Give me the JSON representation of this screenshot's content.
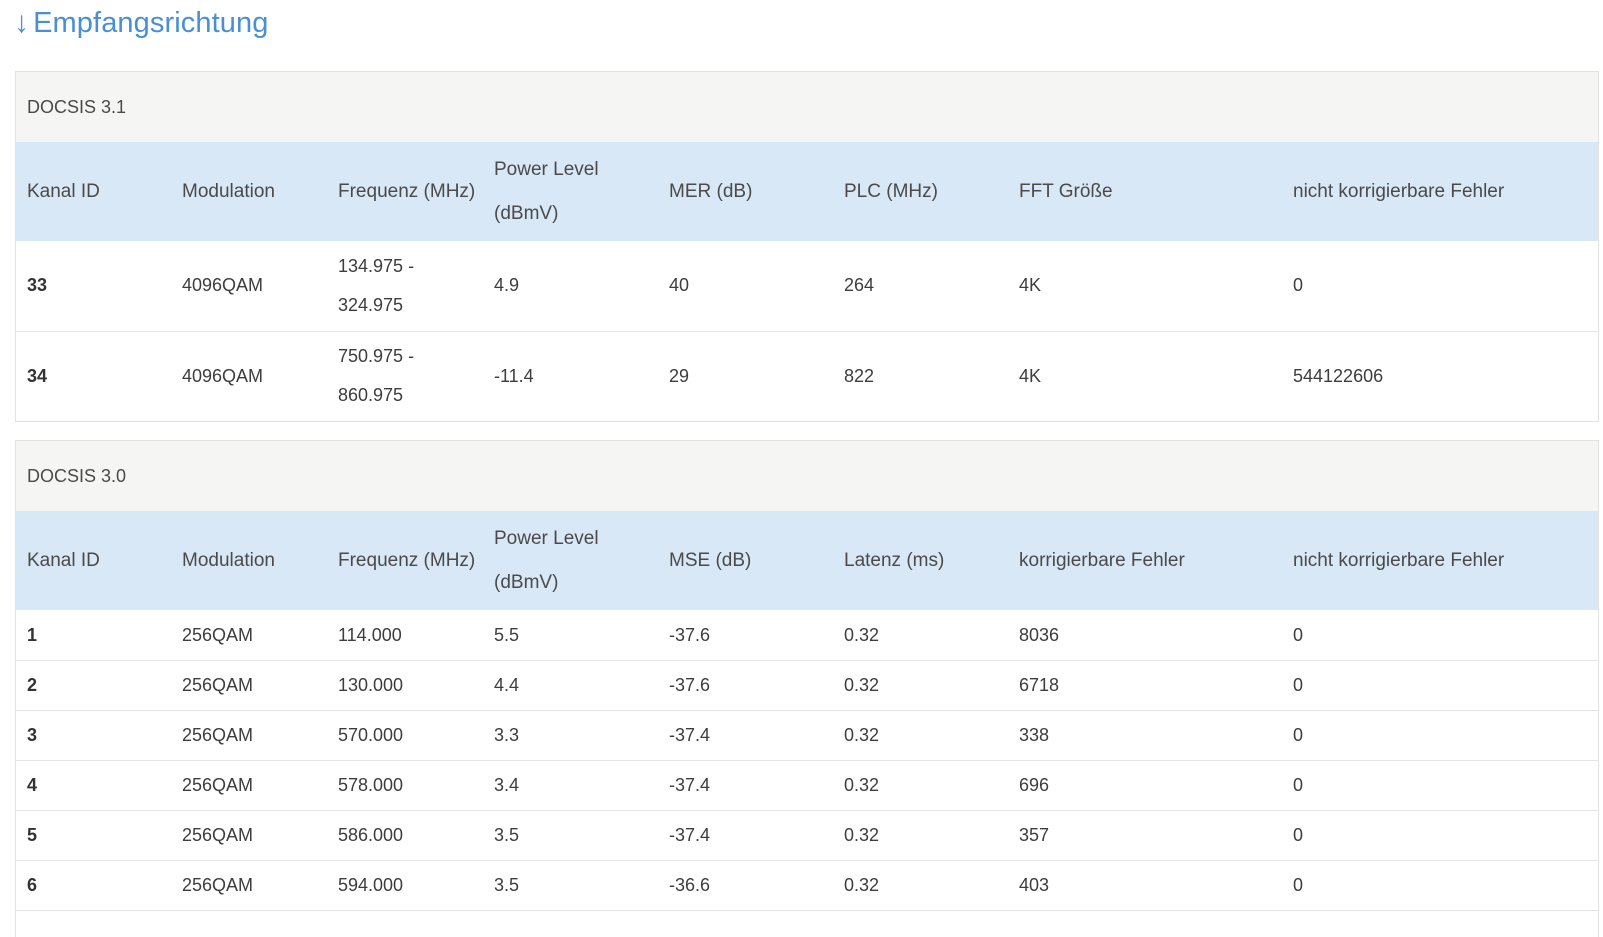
{
  "page": {
    "arrow": "↓",
    "title": "Empfangsrichtung"
  },
  "docsis31": {
    "title": "DOCSIS 3.1",
    "headers": [
      "Kanal ID",
      "Modulation",
      "Frequenz (MHz)",
      "Power Level (dBmV)",
      "MER (dB)",
      "PLC (MHz)",
      "FFT Größe",
      "nicht korrigierbare Fehler"
    ],
    "rows": [
      [
        "33",
        "4096QAM",
        "134.975 - 324.975",
        "4.9",
        "40",
        "264",
        "4K",
        "0"
      ],
      [
        "34",
        "4096QAM",
        "750.975 - 860.975",
        "-11.4",
        "29",
        "822",
        "4K",
        "544122606"
      ]
    ]
  },
  "docsis30": {
    "title": "DOCSIS 3.0",
    "headers": [
      "Kanal ID",
      "Modulation",
      "Frequenz (MHz)",
      "Power Level (dBmV)",
      "MSE (dB)",
      "Latenz (ms)",
      "korrigierbare Fehler",
      "nicht korrigierbare Fehler"
    ],
    "rows": [
      [
        "1",
        "256QAM",
        "114.000",
        "5.5",
        "-37.6",
        "0.32",
        "8036",
        "0"
      ],
      [
        "2",
        "256QAM",
        "130.000",
        "4.4",
        "-37.6",
        "0.32",
        "6718",
        "0"
      ],
      [
        "3",
        "256QAM",
        "570.000",
        "3.3",
        "-37.4",
        "0.32",
        "338",
        "0"
      ],
      [
        "4",
        "256QAM",
        "578.000",
        "3.4",
        "-37.4",
        "0.32",
        "696",
        "0"
      ],
      [
        "5",
        "256QAM",
        "586.000",
        "3.5",
        "-37.4",
        "0.32",
        "357",
        "0"
      ],
      [
        "6",
        "256QAM",
        "594.000",
        "3.5",
        "-36.6",
        "0.32",
        "403",
        "0"
      ]
    ]
  }
}
